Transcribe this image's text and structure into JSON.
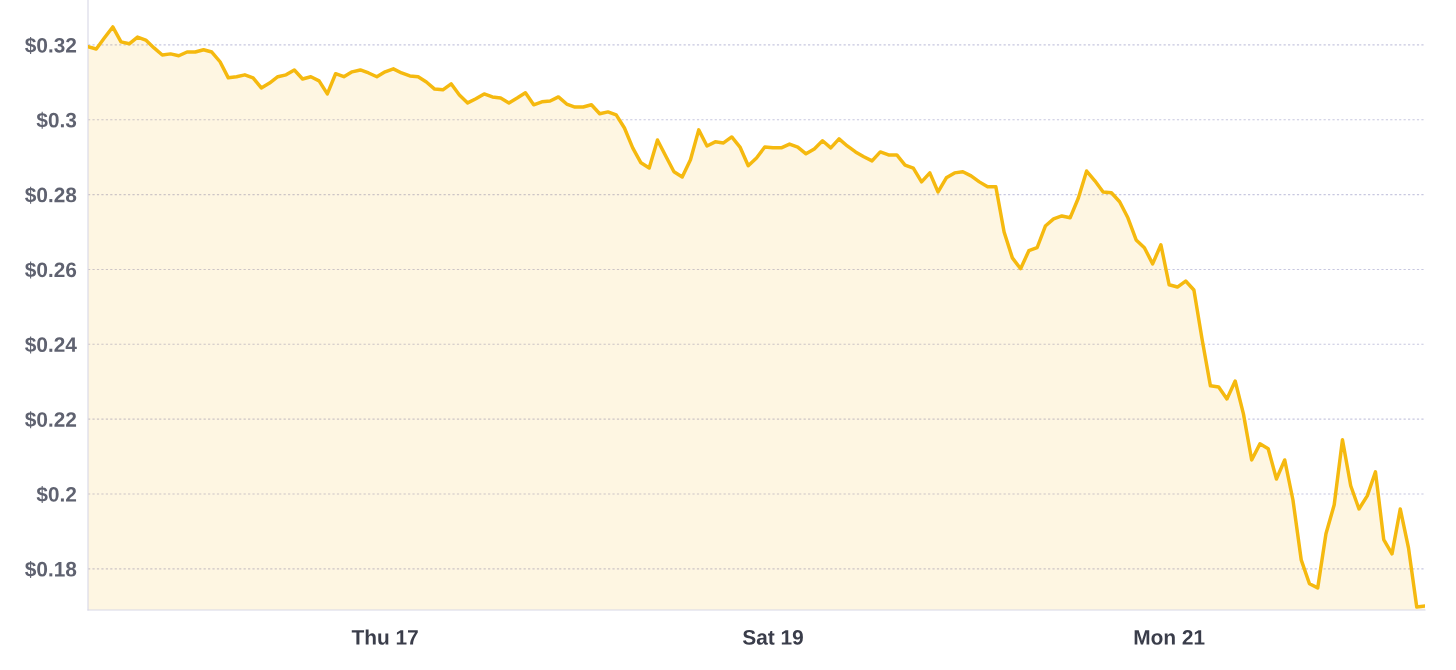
{
  "chart_data": {
    "type": "area",
    "ylim": [
      0.169,
      0.332
    ],
    "categories": [
      null,
      null,
      null,
      null,
      null,
      null,
      null,
      null,
      null,
      null,
      null,
      null,
      null,
      null,
      null,
      null,
      null,
      null,
      null,
      null,
      null,
      null,
      null,
      null,
      null,
      null,
      null,
      null,
      null,
      null,
      null,
      null,
      null,
      null,
      null,
      null,
      "Thu 17",
      null,
      null,
      null,
      null,
      null,
      null,
      null,
      null,
      null,
      null,
      null,
      null,
      null,
      null,
      null,
      null,
      null,
      null,
      null,
      null,
      null,
      null,
      null,
      null,
      null,
      null,
      null,
      null,
      null,
      null,
      null,
      null,
      null,
      null,
      null,
      null,
      null,
      null,
      null,
      null,
      null,
      null,
      null,
      null,
      null,
      null,
      "Sat 19",
      null,
      null,
      null,
      null,
      null,
      null,
      null,
      null,
      null,
      null,
      null,
      null,
      null,
      null,
      null,
      null,
      null,
      null,
      null,
      null,
      null,
      null,
      null,
      null,
      null,
      null,
      null,
      null,
      null,
      null,
      null,
      null,
      null,
      null,
      null,
      null,
      null,
      null,
      null,
      null,
      null,
      null,
      null,
      null,
      null,
      null,
      null,
      "Mon 21",
      null,
      null,
      null,
      null,
      null,
      null,
      null,
      null,
      null,
      null,
      null,
      null,
      null,
      null,
      null,
      null,
      null,
      null,
      null,
      null,
      null,
      null,
      null,
      null,
      null,
      null,
      null,
      null,
      null,
      null,
      null
    ],
    "yticks": [
      {
        "value": 0.18,
        "label": "$0.18"
      },
      {
        "value": 0.2,
        "label": "$0.2"
      },
      {
        "value": 0.22,
        "label": "$0.22"
      },
      {
        "value": 0.24,
        "label": "$0.24"
      },
      {
        "value": 0.26,
        "label": "$0.26"
      },
      {
        "value": 0.28,
        "label": "$0.28"
      },
      {
        "value": 0.3,
        "label": "$0.3"
      },
      {
        "value": 0.32,
        "label": "$0.32"
      }
    ],
    "grid": "y",
    "marker": "none",
    "line_style": "solid",
    "series": [
      {
        "color": "#f5b90f",
        "values": [
          0.3195,
          0.3189,
          0.3219,
          0.3248,
          0.3208,
          0.3203,
          0.3221,
          0.3213,
          0.3192,
          0.3173,
          0.3176,
          0.3171,
          0.3181,
          0.3181,
          0.3187,
          0.3181,
          0.3155,
          0.3112,
          0.3115,
          0.312,
          0.3112,
          0.3085,
          0.3098,
          0.3115,
          0.312,
          0.3133,
          0.3109,
          0.3115,
          0.3104,
          0.3069,
          0.3123,
          0.3115,
          0.3128,
          0.3133,
          0.3125,
          0.3115,
          0.3128,
          0.3136,
          0.3125,
          0.3117,
          0.3115,
          0.3101,
          0.3082,
          0.308,
          0.3096,
          0.3066,
          0.3045,
          0.3056,
          0.3069,
          0.3061,
          0.3058,
          0.3045,
          0.3058,
          0.3072,
          0.304,
          0.3048,
          0.305,
          0.3061,
          0.3042,
          0.3034,
          0.3034,
          0.304,
          0.3016,
          0.3021,
          0.3013,
          0.2978,
          0.2925,
          0.2885,
          0.2871,
          0.2946,
          0.2903,
          0.2861,
          0.2847,
          0.2893,
          0.2973,
          0.293,
          0.2941,
          0.2938,
          0.2954,
          0.2927,
          0.2877,
          0.2898,
          0.2927,
          0.2925,
          0.2925,
          0.2935,
          0.2927,
          0.2909,
          0.2922,
          0.2944,
          0.2925,
          0.2949,
          0.293,
          0.2914,
          0.2901,
          0.289,
          0.2914,
          0.2906,
          0.2906,
          0.2879,
          0.2871,
          0.2834,
          0.2858,
          0.2807,
          0.2845,
          0.2858,
          0.2861,
          0.285,
          0.2834,
          0.2821,
          0.2821,
          0.27,
          0.2631,
          0.2602,
          0.265,
          0.2658,
          0.2716,
          0.2735,
          0.2743,
          0.2738,
          0.2791,
          0.2863,
          0.2837,
          0.2807,
          0.2805,
          0.2781,
          0.2738,
          0.2679,
          0.2658,
          0.2615,
          0.2666,
          0.2559,
          0.2553,
          0.2569,
          0.2545,
          0.2412,
          0.2289,
          0.2286,
          0.2254,
          0.2302,
          0.2214,
          0.2091,
          0.2134,
          0.2121,
          0.204,
          0.2091,
          0.1984,
          0.1824,
          0.176,
          0.1749,
          0.1894,
          0.1971,
          0.2145,
          0.2022,
          0.196,
          0.1995,
          0.2059,
          0.1878,
          0.184,
          0.196,
          0.1856,
          0.1698,
          0.1701
        ]
      }
    ]
  }
}
